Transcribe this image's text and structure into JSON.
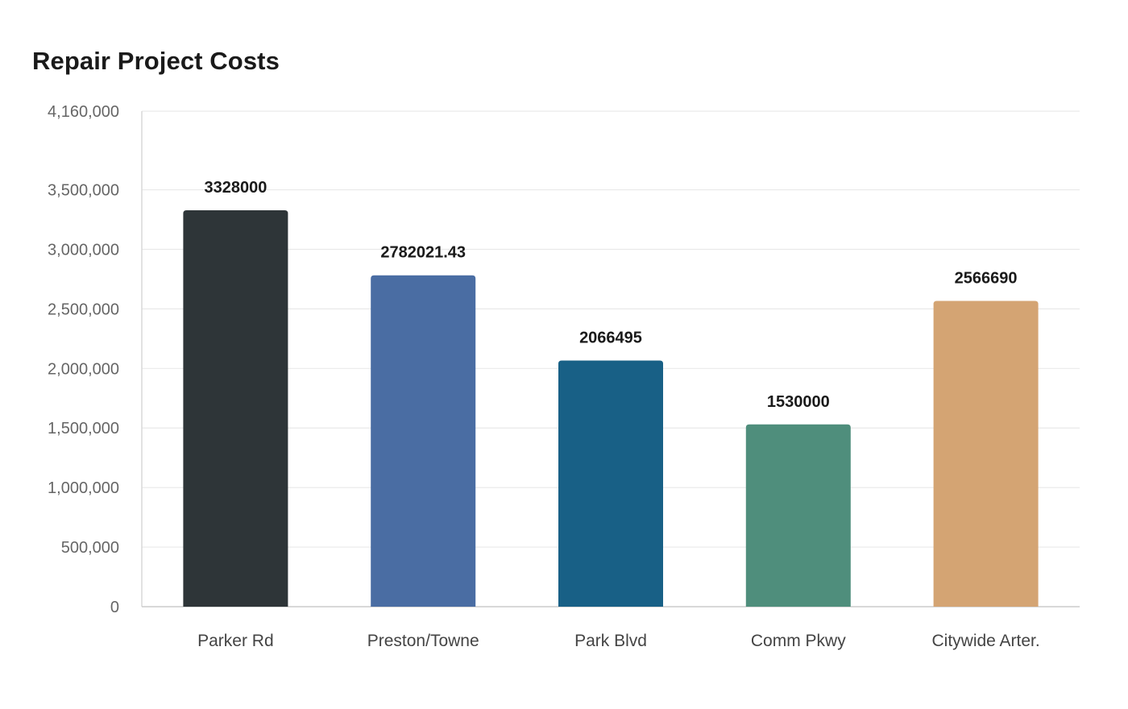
{
  "chart_data": {
    "type": "bar",
    "title": "Repair Project Costs",
    "xlabel": "",
    "ylabel": "",
    "categories": [
      "Parker Rd",
      "Preston/Towne",
      "Park Blvd",
      "Comm Pkwy",
      "Citywide Arter."
    ],
    "values": [
      3328000,
      2782021.43,
      2066495,
      1530000,
      2566690
    ],
    "value_labels": [
      "3328000",
      "2782021.43",
      "2066495",
      "1530000",
      "2566690"
    ],
    "colors": [
      "#2e3538",
      "#4a6da3",
      "#186086",
      "#4f8e7c",
      "#d4a473"
    ],
    "ylim": [
      0,
      4160000
    ],
    "yticks": [
      0,
      500000,
      1000000,
      1500000,
      2000000,
      2500000,
      3000000,
      3500000,
      4160000
    ],
    "ytick_labels": [
      "0",
      "500,000",
      "1,000,000",
      "1,500,000",
      "2,000,000",
      "2,500,000",
      "3,000,000",
      "3,500,000",
      "4,160,000"
    ],
    "grid": true,
    "legend": "none"
  }
}
